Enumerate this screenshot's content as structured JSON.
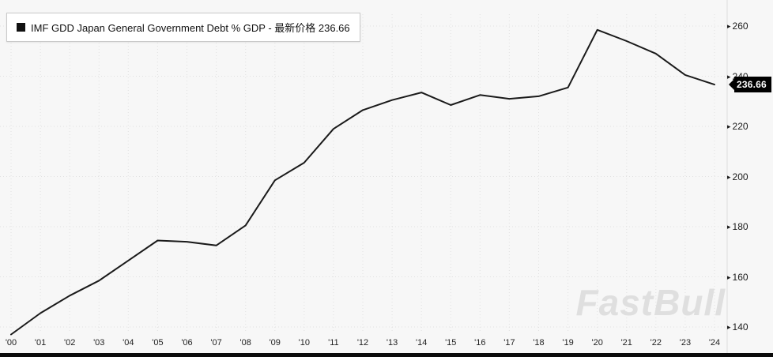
{
  "legend": {
    "marker_color": "#111111",
    "text": "IMF GDD Japan General Government Debt % GDP - 最新价格 236.66"
  },
  "price_tag": {
    "value": "236.66",
    "bg": "#000000",
    "text_color": "#ffffff"
  },
  "watermark": "FastBull",
  "chart_data": {
    "type": "line",
    "title": "IMF GDD Japan General Government Debt % GDP",
    "series_name": "IMF GDD Japan General Government Debt % GDP",
    "categories": [
      "'00",
      "'01",
      "'02",
      "'03",
      "'04",
      "'05",
      "'06",
      "'07",
      "'08",
      "'09",
      "'10",
      "'11",
      "'12",
      "'13",
      "'14",
      "'15",
      "'16",
      "'17",
      "'18",
      "'19",
      "'20",
      "'21",
      "'22",
      "'23",
      "'24"
    ],
    "values": [
      137.0,
      145.5,
      152.5,
      158.5,
      166.5,
      174.5,
      174.0,
      172.5,
      180.5,
      198.5,
      205.5,
      219.0,
      226.5,
      230.5,
      233.5,
      228.5,
      232.5,
      231.0,
      232.0,
      235.5,
      258.5,
      254.0,
      249.0,
      240.5,
      236.66
    ],
    "last_price": 236.66,
    "yticks": [
      140,
      160,
      180,
      200,
      220,
      240,
      260
    ],
    "ylim": [
      130,
      265
    ],
    "xlabel": "",
    "ylabel": "",
    "line_color": "#1a1a1a",
    "grid": "dotted",
    "legend_position": "top-left",
    "y_axis_side": "right"
  }
}
